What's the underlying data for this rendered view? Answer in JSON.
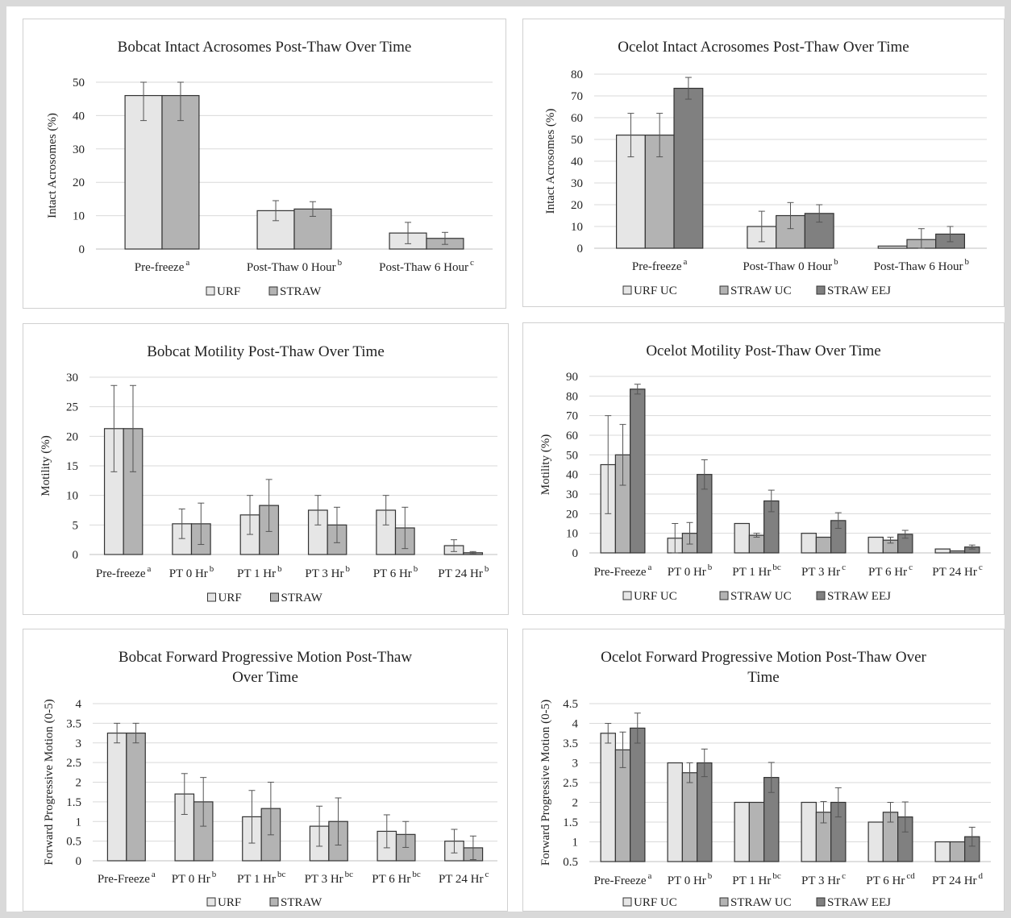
{
  "chart_data": [
    {
      "type": "bar",
      "title": "Bobcat Intact Acrosomes Post-Thaw Over Time",
      "ylabel": "Intact Acrosomes (%)",
      "xlabel": "",
      "ylim": [
        0,
        50
      ],
      "yticks": [
        0,
        10,
        20,
        30,
        40,
        50
      ],
      "categories": [
        "Pre-freeze",
        "Post-Thaw 0 Hour",
        "Post-Thaw 6 Hour"
      ],
      "category_superscripts": [
        "a",
        "b",
        "c"
      ],
      "series": [
        {
          "name": "URF",
          "color": "#e6e6e6",
          "values": [
            46,
            11.5,
            4.8
          ],
          "errors": [
            7.5,
            3,
            3.2
          ]
        },
        {
          "name": "STRAW",
          "color": "#b3b3b3",
          "values": [
            46,
            12,
            3.2
          ],
          "errors": [
            7.5,
            2.2,
            1.8
          ]
        }
      ],
      "legend_position": "bottom",
      "grid": true
    },
    {
      "type": "bar",
      "title": "Ocelot Intact Acrosomes Post-Thaw Over Time",
      "ylabel": "Intact Acrosomes (%)",
      "xlabel": "",
      "ylim": [
        0,
        80
      ],
      "yticks": [
        0,
        10,
        20,
        30,
        40,
        50,
        60,
        70,
        80
      ],
      "categories": [
        "Pre-freeze",
        "Post-Thaw 0 Hour",
        "Post-Thaw 6 Hour"
      ],
      "category_superscripts": [
        "a",
        "b",
        "b"
      ],
      "series": [
        {
          "name": "URF UC",
          "color": "#e6e6e6",
          "values": [
            52,
            10,
            1
          ],
          "errors": [
            10,
            7,
            0
          ]
        },
        {
          "name": "STRAW UC",
          "color": "#b3b3b3",
          "values": [
            52,
            15,
            4
          ],
          "errors": [
            10,
            6,
            5
          ]
        },
        {
          "name": "STRAW EEJ",
          "color": "#808080",
          "values": [
            73.5,
            16,
            6.5
          ],
          "errors": [
            5,
            4,
            3.5
          ]
        }
      ],
      "legend_position": "bottom",
      "grid": true
    },
    {
      "type": "bar",
      "title": "Bobcat Motility Post-Thaw Over Time",
      "ylabel": "Motility (%)",
      "xlabel": "",
      "ylim": [
        0,
        30
      ],
      "yticks": [
        0,
        5,
        10,
        15,
        20,
        25,
        30
      ],
      "categories": [
        "Pre-freeze",
        "PT 0 Hr",
        "PT 1 Hr",
        "PT 3 Hr",
        "PT 6 Hr",
        "PT 24 Hr"
      ],
      "category_superscripts": [
        "a",
        "b",
        "b",
        "b",
        "b",
        "b"
      ],
      "series": [
        {
          "name": "URF",
          "color": "#e6e6e6",
          "values": [
            21.3,
            5.2,
            6.7,
            7.5,
            7.5,
            1.5
          ],
          "errors": [
            7.3,
            2.5,
            3.3,
            2.5,
            2.5,
            1
          ]
        },
        {
          "name": "STRAW",
          "color": "#b3b3b3",
          "values": [
            21.3,
            5.2,
            8.3,
            5,
            4.5,
            0.3
          ],
          "errors": [
            7.3,
            3.5,
            4.4,
            3,
            3.5,
            0.2
          ]
        }
      ],
      "legend_position": "bottom",
      "grid": true
    },
    {
      "type": "bar",
      "title": "Ocelot Motility Post-Thaw Over Time",
      "ylabel": "Motility (%)",
      "xlabel": "",
      "ylim": [
        0,
        90
      ],
      "yticks": [
        0,
        10,
        20,
        30,
        40,
        50,
        60,
        70,
        80,
        90
      ],
      "categories": [
        "Pre-Freeze",
        "PT 0 Hr",
        "PT 1 Hr",
        "PT 3 Hr",
        "PT 6 Hr",
        "PT 24 Hr"
      ],
      "category_superscripts": [
        "a",
        "b",
        "bc",
        "c",
        "c",
        "c"
      ],
      "series": [
        {
          "name": "URF UC",
          "color": "#e6e6e6",
          "values": [
            45,
            7.5,
            15,
            10,
            8,
            2
          ],
          "errors": [
            25,
            7.5,
            0,
            0,
            0,
            0
          ]
        },
        {
          "name": "STRAW UC",
          "color": "#b3b3b3",
          "values": [
            50,
            10,
            9,
            8,
            6.5,
            1
          ],
          "errors": [
            15.5,
            5.5,
            1,
            0,
            1.5,
            0
          ]
        },
        {
          "name": "STRAW EEJ",
          "color": "#808080",
          "values": [
            83.5,
            40,
            26.5,
            16.5,
            9.5,
            3
          ],
          "errors": [
            2.5,
            7.5,
            5.5,
            4,
            2,
            1
          ]
        }
      ],
      "legend_position": "bottom",
      "grid": true
    },
    {
      "type": "bar",
      "title": "Bobcat Forward Progressive Motion Post-Thaw Over Time",
      "title_lines": [
        "Bobcat Forward Progressive Motion Post-Thaw",
        "Over Time"
      ],
      "ylabel": "Forward Progressive Motion (0-5)",
      "xlabel": "",
      "ylim": [
        0,
        4
      ],
      "yticks": [
        0,
        0.5,
        1,
        1.5,
        2,
        2.5,
        3,
        3.5,
        4
      ],
      "categories": [
        "Pre-Freeze",
        "PT 0 Hr",
        "PT 1 Hr",
        "PT 3 Hr",
        "PT 6 Hr",
        "PT 24 Hr"
      ],
      "category_superscripts": [
        "a",
        "b",
        "bc",
        "bc",
        "bc",
        "c"
      ],
      "series": [
        {
          "name": "URF",
          "color": "#e6e6e6",
          "values": [
            3.25,
            1.7,
            1.12,
            0.88,
            0.75,
            0.5
          ],
          "errors": [
            0.25,
            0.52,
            0.67,
            0.51,
            0.42,
            0.3
          ]
        },
        {
          "name": "STRAW",
          "color": "#b3b3b3",
          "values": [
            3.25,
            1.5,
            1.33,
            1,
            0.67,
            0.33
          ],
          "errors": [
            0.25,
            0.62,
            0.67,
            0.6,
            0.33,
            0.3
          ]
        }
      ],
      "legend_position": "bottom",
      "grid": true
    },
    {
      "type": "bar",
      "title": "Ocelot Forward Progressive Motion Post-Thaw Over Time",
      "title_lines": [
        "Ocelot Forward Progressive Motion Post-Thaw Over",
        "Time"
      ],
      "ylabel": "Forward Progressive Motion (0-5)",
      "xlabel": "",
      "ylim": [
        0.5,
        4.5
      ],
      "yticks": [
        0.5,
        1,
        1.5,
        2,
        2.5,
        3,
        3.5,
        4,
        4.5
      ],
      "categories": [
        "Pre-Freeze",
        "PT 0 Hr",
        "PT 1 Hr",
        "PT 3 Hr",
        "PT 6 Hr",
        "PT 24 Hr"
      ],
      "category_superscripts": [
        "a",
        "b",
        "bc",
        "c",
        "cd",
        "d"
      ],
      "series": [
        {
          "name": "URF UC",
          "color": "#e6e6e6",
          "values": [
            3.75,
            3,
            2,
            2,
            1.5,
            1
          ],
          "errors": [
            0.25,
            0,
            0,
            0,
            0,
            0
          ]
        },
        {
          "name": "STRAW UC",
          "color": "#b3b3b3",
          "values": [
            3.33,
            2.75,
            2,
            1.75,
            1.75,
            1
          ],
          "errors": [
            0.45,
            0.25,
            0,
            0.27,
            0.25,
            0
          ]
        },
        {
          "name": "STRAW EEJ",
          "color": "#808080",
          "values": [
            3.88,
            3,
            2.63,
            2,
            1.63,
            1.13
          ],
          "errors": [
            0.38,
            0.35,
            0.38,
            0.37,
            0.38,
            0.24
          ]
        }
      ],
      "legend_position": "bottom",
      "grid": true
    }
  ]
}
